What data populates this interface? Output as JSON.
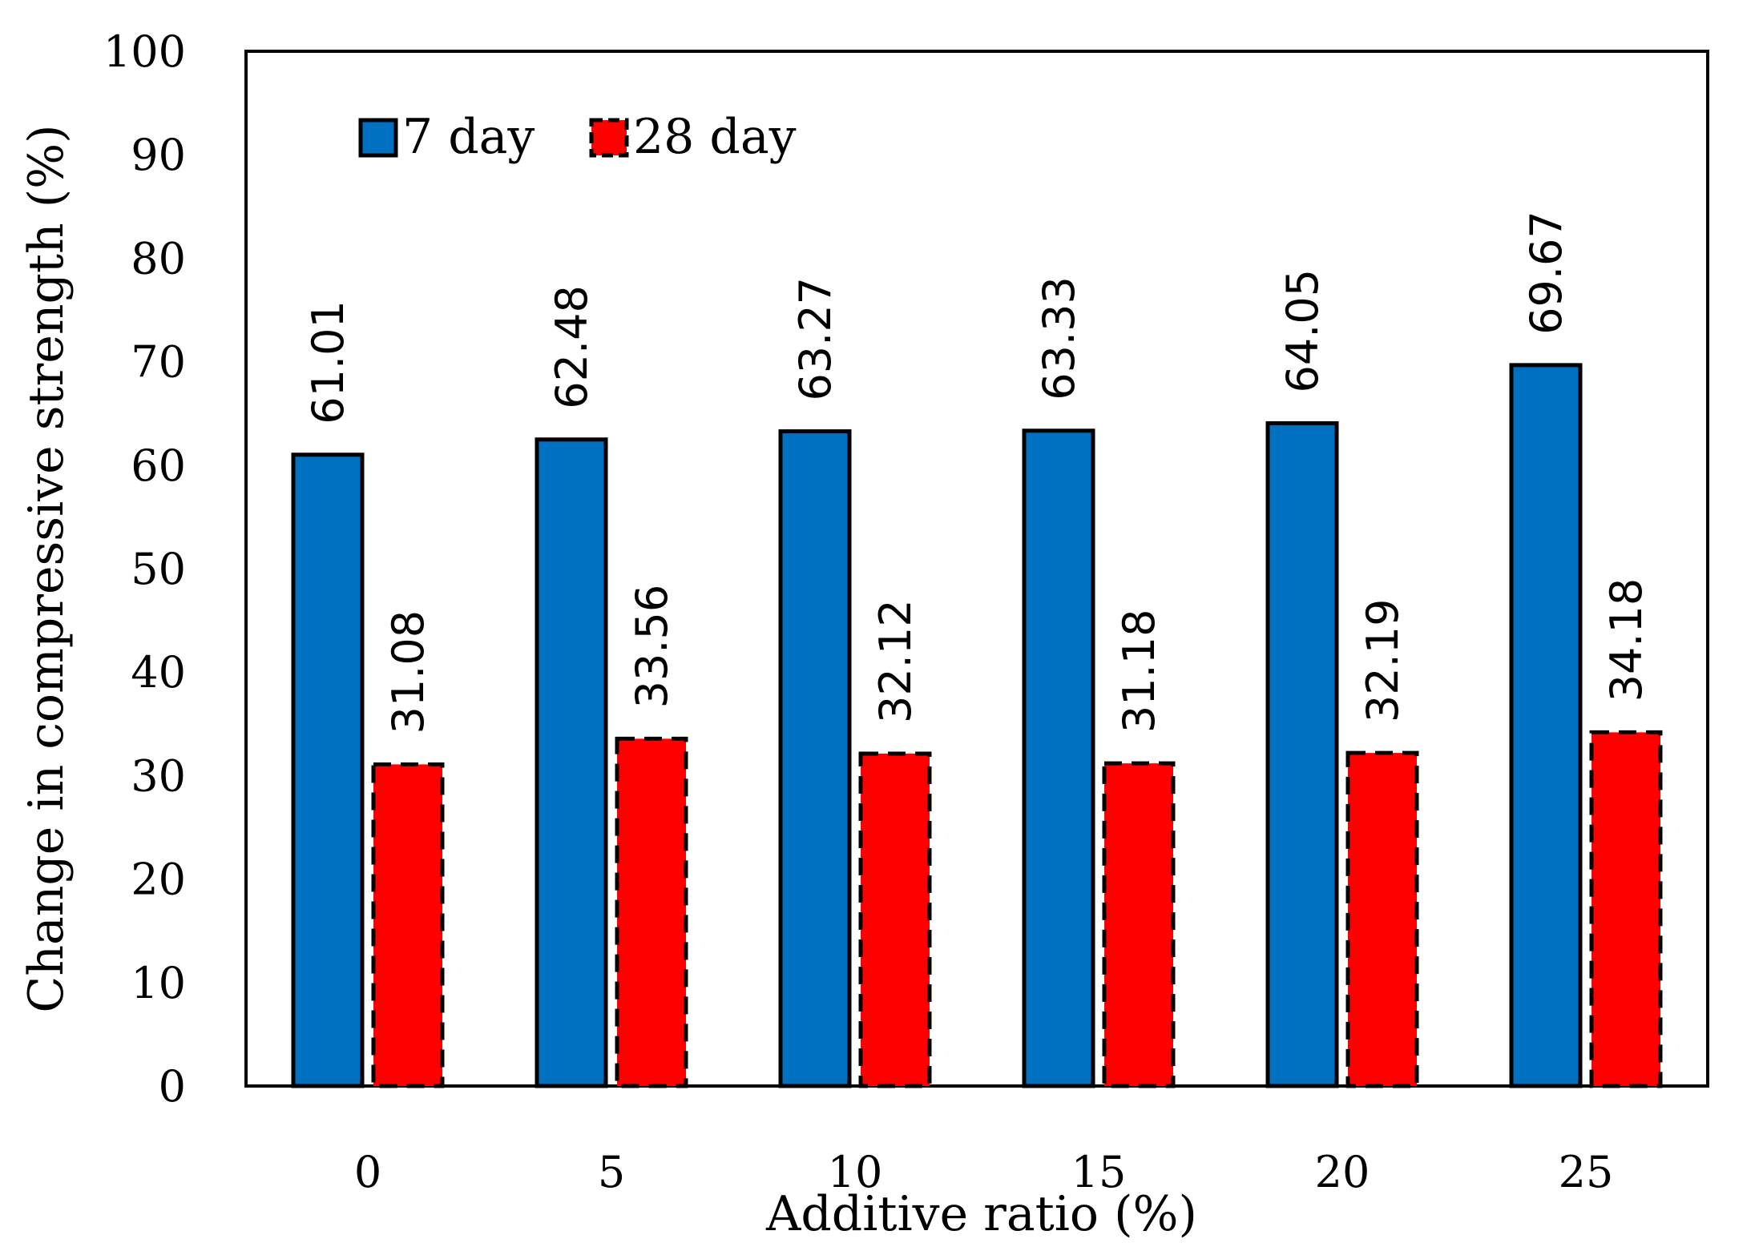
{
  "chart_data": {
    "type": "bar",
    "categories": [
      "0",
      "5",
      "10",
      "15",
      "20",
      "25"
    ],
    "series": [
      {
        "name": "7 day",
        "values": [
          61.01,
          62.48,
          63.27,
          63.33,
          64.05,
          69.67
        ],
        "color": "#0070C0",
        "border": "solid"
      },
      {
        "name": "28 day",
        "values": [
          31.08,
          33.56,
          32.12,
          31.18,
          32.19,
          34.18
        ],
        "color": "#FF0000",
        "border": "dashed"
      }
    ],
    "data_labels": {
      "7 day": [
        "61.01",
        "62.48",
        "63.27",
        "63.33",
        "64.05",
        "69.67"
      ],
      "28 day": [
        "31.08",
        "33.56",
        "32.12",
        "31.18",
        "32.19",
        "34.18"
      ]
    },
    "yticks": [
      "0",
      "10",
      "20",
      "30",
      "40",
      "50",
      "60",
      "70",
      "80",
      "90",
      "100"
    ],
    "xlabel": "Additive ratio (%)",
    "ylabel": "Change in compressive strength (%)",
    "ylim": [
      0,
      100
    ],
    "grid": false,
    "legend_position": "top-left"
  }
}
